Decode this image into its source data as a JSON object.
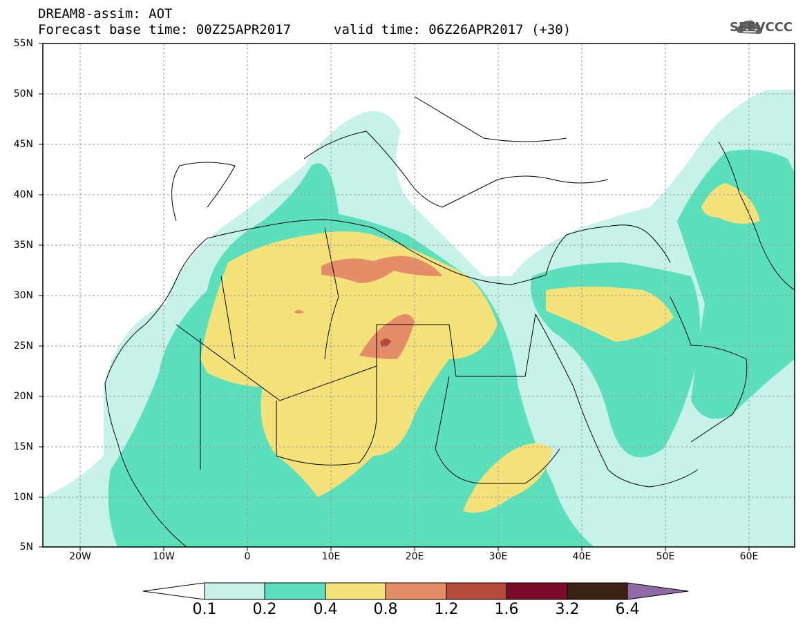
{
  "header": {
    "line1": "DREAM8-assim: AOT",
    "line2": "Forecast base time: 00Z25APR2017",
    "valid": "valid time: 06Z26APR2017 (+30)"
  },
  "logo": {
    "text": "SEEVCCC",
    "icon": "cloud-icon"
  },
  "axes": {
    "lat_labels": [
      "55N",
      "50N",
      "45N",
      "40N",
      "35N",
      "30N",
      "25N",
      "20N",
      "15N",
      "10N",
      "5N"
    ],
    "lon_labels": [
      "20W",
      "10W",
      "0",
      "10E",
      "20E",
      "30E",
      "40E",
      "50E",
      "60E"
    ],
    "lat_range": [
      5,
      55
    ],
    "lon_range": [
      -25,
      65
    ],
    "grid": true
  },
  "colorbar": {
    "labels": [
      "0.1",
      "0.2",
      "0.4",
      "0.8",
      "1.2",
      "1.6",
      "3.2",
      "6.4"
    ],
    "colors": [
      "#ffffff",
      "#c6f2ea",
      "#5ce0bc",
      "#f5e27a",
      "#e58c68",
      "#b44a3a",
      "#7a0b2a",
      "#3a2212",
      "#8f6aa6"
    ]
  }
}
